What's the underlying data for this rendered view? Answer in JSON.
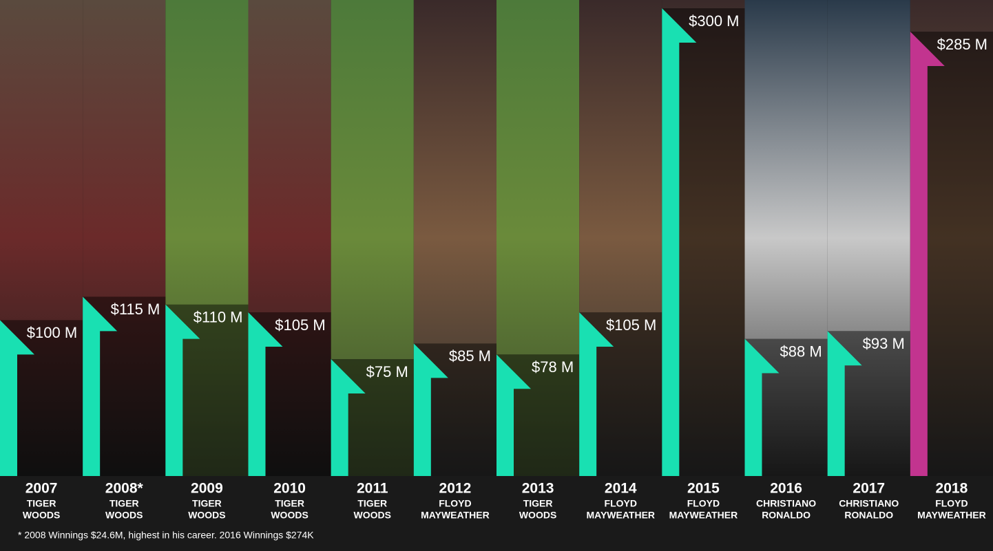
{
  "chart_data": {
    "type": "bar",
    "categories": [
      "2007",
      "2008*",
      "2009",
      "2010",
      "2011",
      "2012",
      "2013",
      "2014",
      "2015",
      "2016",
      "2017",
      "2018"
    ],
    "athletes": [
      [
        "TIGER",
        "WOODS"
      ],
      [
        "TIGER",
        "WOODS"
      ],
      [
        "TIGER",
        "WOODS"
      ],
      [
        "TIGER",
        "WOODS"
      ],
      [
        "TIGER",
        "WOODS"
      ],
      [
        "FLOYD",
        "MAYWEATHER"
      ],
      [
        "TIGER",
        "WOODS"
      ],
      [
        "FLOYD",
        "MAYWEATHER"
      ],
      [
        "FLOYD",
        "MAYWEATHER"
      ],
      [
        "CHRISTIANO",
        "RONALDO"
      ],
      [
        "CHRISTIANO",
        "RONALDO"
      ],
      [
        "FLOYD",
        "MAYWEATHER"
      ]
    ],
    "values": [
      100,
      115,
      110,
      105,
      75,
      85,
      78,
      105,
      300,
      88,
      93,
      285
    ],
    "value_labels": [
      "$100 M",
      "$115 M",
      "$110 M",
      "$105 M",
      "$75 M",
      "$85 M",
      "$78 M",
      "$105 M",
      "$300 M",
      "$88 M",
      "$93 M",
      "$285 M"
    ],
    "colors": [
      "#19e0b2",
      "#19e0b2",
      "#19e0b2",
      "#19e0b2",
      "#19e0b2",
      "#19e0b2",
      "#19e0b2",
      "#19e0b2",
      "#19e0b2",
      "#19e0b2",
      "#19e0b2",
      "#c2348f"
    ],
    "ylim": [
      0,
      300
    ],
    "footnote": "* 2008 Winnings $24.6M, highest in his career. 2016 Winnings $274K"
  }
}
